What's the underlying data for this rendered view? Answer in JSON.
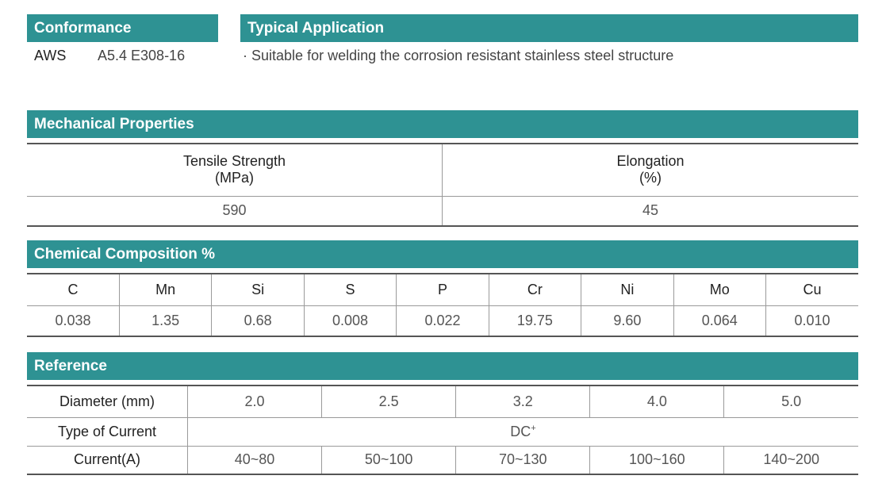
{
  "conformance": {
    "title": "Conformance",
    "standard": "AWS",
    "spec": "A5.4 E308-16"
  },
  "application": {
    "title": "Typical Application",
    "bullet": "·",
    "text": "Suitable for welding the corrosion resistant stainless steel structure"
  },
  "mechanical": {
    "title": "Mechanical Properties",
    "tensile_label": "Tensile Strength",
    "tensile_unit": "(MPa)",
    "elongation_label": "Elongation",
    "elongation_unit": "(%)",
    "tensile_value": "590",
    "elongation_value": "45"
  },
  "chemical": {
    "title": "Chemical Composition %",
    "elements": [
      "C",
      "Mn",
      "Si",
      "S",
      "P",
      "Cr",
      "Ni",
      "Mo",
      "Cu"
    ],
    "values": [
      "0.038",
      "1.35",
      "0.68",
      "0.008",
      "0.022",
      "19.75",
      "9.60",
      "0.064",
      "0.010"
    ]
  },
  "reference": {
    "title": "Reference",
    "diameter_label": "Diameter (mm)",
    "diameters": [
      "2.0",
      "2.5",
      "3.2",
      "4.0",
      "5.0"
    ],
    "current_type_label": "Type of Current",
    "current_type": "DC",
    "current_type_sup": "+",
    "current_label": "Current(A)",
    "currents": [
      "40~80",
      "50~100",
      "70~130",
      "100~160",
      "140~200"
    ]
  }
}
